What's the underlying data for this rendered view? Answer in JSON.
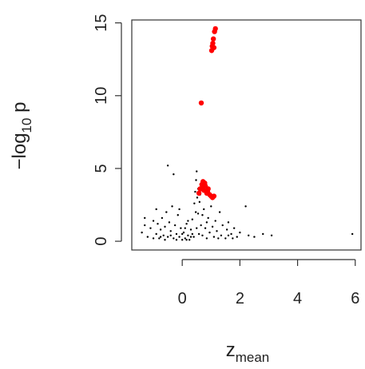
{
  "chart_data": {
    "type": "scatter",
    "x_label": {
      "text": "z",
      "subscript": "mean"
    },
    "y_label": {
      "text": "−log",
      "subscript": "10",
      "after": " p"
    },
    "xlim": [
      -1.75,
      6.2
    ],
    "ylim": [
      -0.6,
      15.2
    ],
    "xticks": [
      0,
      2,
      4,
      6
    ],
    "yticks": [
      0,
      5,
      10,
      15
    ],
    "series": [
      {
        "color": "#000000",
        "x": [
          -1.4,
          -1.3,
          -1.2,
          -1.1,
          -1.0,
          -0.9,
          -0.85,
          -0.8,
          -0.75,
          -0.7,
          -0.65,
          -0.6,
          -0.55,
          -0.5,
          -0.45,
          -0.4,
          -0.35,
          -0.3,
          -0.25,
          -0.2,
          -0.15,
          -0.1,
          -0.05,
          0,
          0.05,
          0.1,
          0.15,
          0.2,
          0.25,
          0.3,
          0.35,
          0.4,
          0.42,
          0.45,
          0.48,
          0.5,
          0.52,
          0.55,
          0.58,
          0.6,
          0.65,
          0.7,
          0.75,
          0.8,
          0.85,
          0.9,
          0.95,
          1.0,
          1.05,
          1.1,
          1.15,
          1.2,
          1.3,
          1.35,
          1.4,
          1.5,
          1.55,
          1.6,
          1.7,
          1.8,
          1.9,
          2.0,
          2.2,
          2.3,
          2.5,
          2.8,
          3.1,
          5.9,
          -0.5,
          -0.3,
          -0.9,
          -1.3,
          0.2,
          -0.1,
          0.3,
          0.1,
          -0.2,
          0.55,
          0.47,
          0.62,
          1.25,
          0.7,
          0.85,
          -0.6,
          -0.4,
          0.0,
          0.15,
          1.6,
          1.75,
          0.5,
          0.35,
          -0.75,
          -1.0
        ],
        "y": [
          0.6,
          1.1,
          0.3,
          0.9,
          1.4,
          0.5,
          1.2,
          0.2,
          0.8,
          1.6,
          0.4,
          1.0,
          2.0,
          0.3,
          1.3,
          0.7,
          2.4,
          0.2,
          1.1,
          0.5,
          1.8,
          0.3,
          0.9,
          0.1,
          0.6,
          0.2,
          1.2,
          0.4,
          0.1,
          0.8,
          1.5,
          0.3,
          2.6,
          3.4,
          4.2,
          4.8,
          3.0,
          1.9,
          0.5,
          2.7,
          1.1,
          0.4,
          2.2,
          0.9,
          0.2,
          1.6,
          0.6,
          2.4,
          1.0,
          0.3,
          1.4,
          0.7,
          2.0,
          0.4,
          1.1,
          0.2,
          0.8,
          1.3,
          0.5,
          0.9,
          0.3,
          0.6,
          2.4,
          0.4,
          0.3,
          0.5,
          0.4,
          0.5,
          5.2,
          4.6,
          2.2,
          1.6,
          1.4,
          2.2,
          0.3,
          0.9,
          0.1,
          3.6,
          2.0,
          3.2,
          0.2,
          1.8,
          1.3,
          0.1,
          0.4,
          0.5,
          0.1,
          0.4,
          0.2,
          0.9,
          0.5,
          0.3,
          0.2
        ]
      },
      {
        "color": "#ff0000",
        "x": [
          0.62,
          0.68,
          0.72,
          0.75,
          0.8,
          0.85,
          0.9,
          0.95,
          1.0,
          1.05,
          1.1,
          0.7,
          0.78,
          0.88,
          0.58,
          0.66,
          1.02,
          1.04,
          1.06,
          1.08,
          1.1,
          1.12,
          1.15
        ],
        "y": [
          3.6,
          3.9,
          4.1,
          3.5,
          3.8,
          3.3,
          3.6,
          3.2,
          3.1,
          3.0,
          3.1,
          3.7,
          4.0,
          3.4,
          3.3,
          9.5,
          13.1,
          13.4,
          13.6,
          13.9,
          13.3,
          14.4,
          14.6
        ]
      }
    ]
  }
}
